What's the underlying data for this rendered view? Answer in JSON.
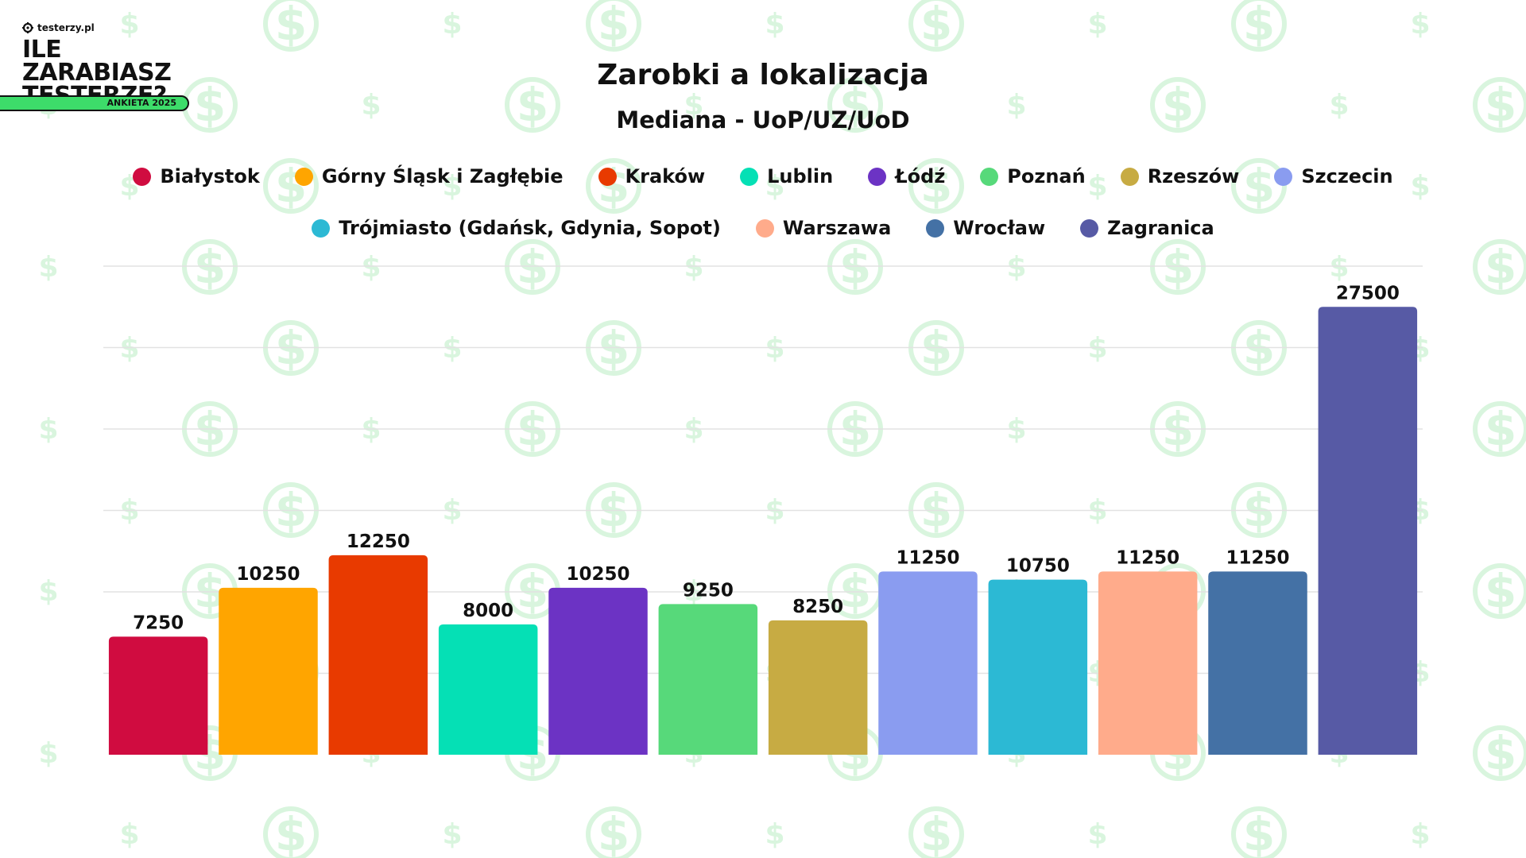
{
  "logo": {
    "site": "testerzy.pl",
    "title": "ILE ZARABIASZ\nTESTERZE?",
    "badge": "ANKIETA 2025",
    "badge_color": "#3ddc6a"
  },
  "background": {
    "pattern_icon": "dollar-icon",
    "pattern_color": "#d9f5de"
  },
  "chart_data": {
    "type": "bar",
    "title": "Zarobki a lokalizacja",
    "subtitle": "Mediana - UoP/UZ/UoD",
    "xlabel": "",
    "ylabel": "",
    "ylim": [
      0,
      30000
    ],
    "grid": true,
    "legend_position": "top",
    "categories": [
      "Białystok",
      "Górny Śląsk i Zagłębie",
      "Kraków",
      "Lublin",
      "Łódź",
      "Poznań",
      "Rzeszów",
      "Szczecin",
      "Trójmiasto (Gdańsk, Gdynia, Sopot)",
      "Warszawa",
      "Wrocław",
      "Zagranica"
    ],
    "values": [
      7250,
      10250,
      12250,
      8000,
      10250,
      9250,
      8250,
      11250,
      10750,
      11250,
      11250,
      27500
    ],
    "value_labels": [
      "7250",
      "10250",
      "12250",
      "8000",
      "10250",
      "9250",
      "8250",
      "11250",
      "10750",
      "11250",
      "11250",
      "27500"
    ],
    "colors": [
      "#d00c40",
      "#ffa500",
      "#e83a00",
      "#05e0b5",
      "#6c33c4",
      "#57d97a",
      "#c7ab43",
      "#8a9cf0",
      "#2cb9d4",
      "#ffab8b",
      "#4471a5",
      "#575aa5"
    ]
  }
}
